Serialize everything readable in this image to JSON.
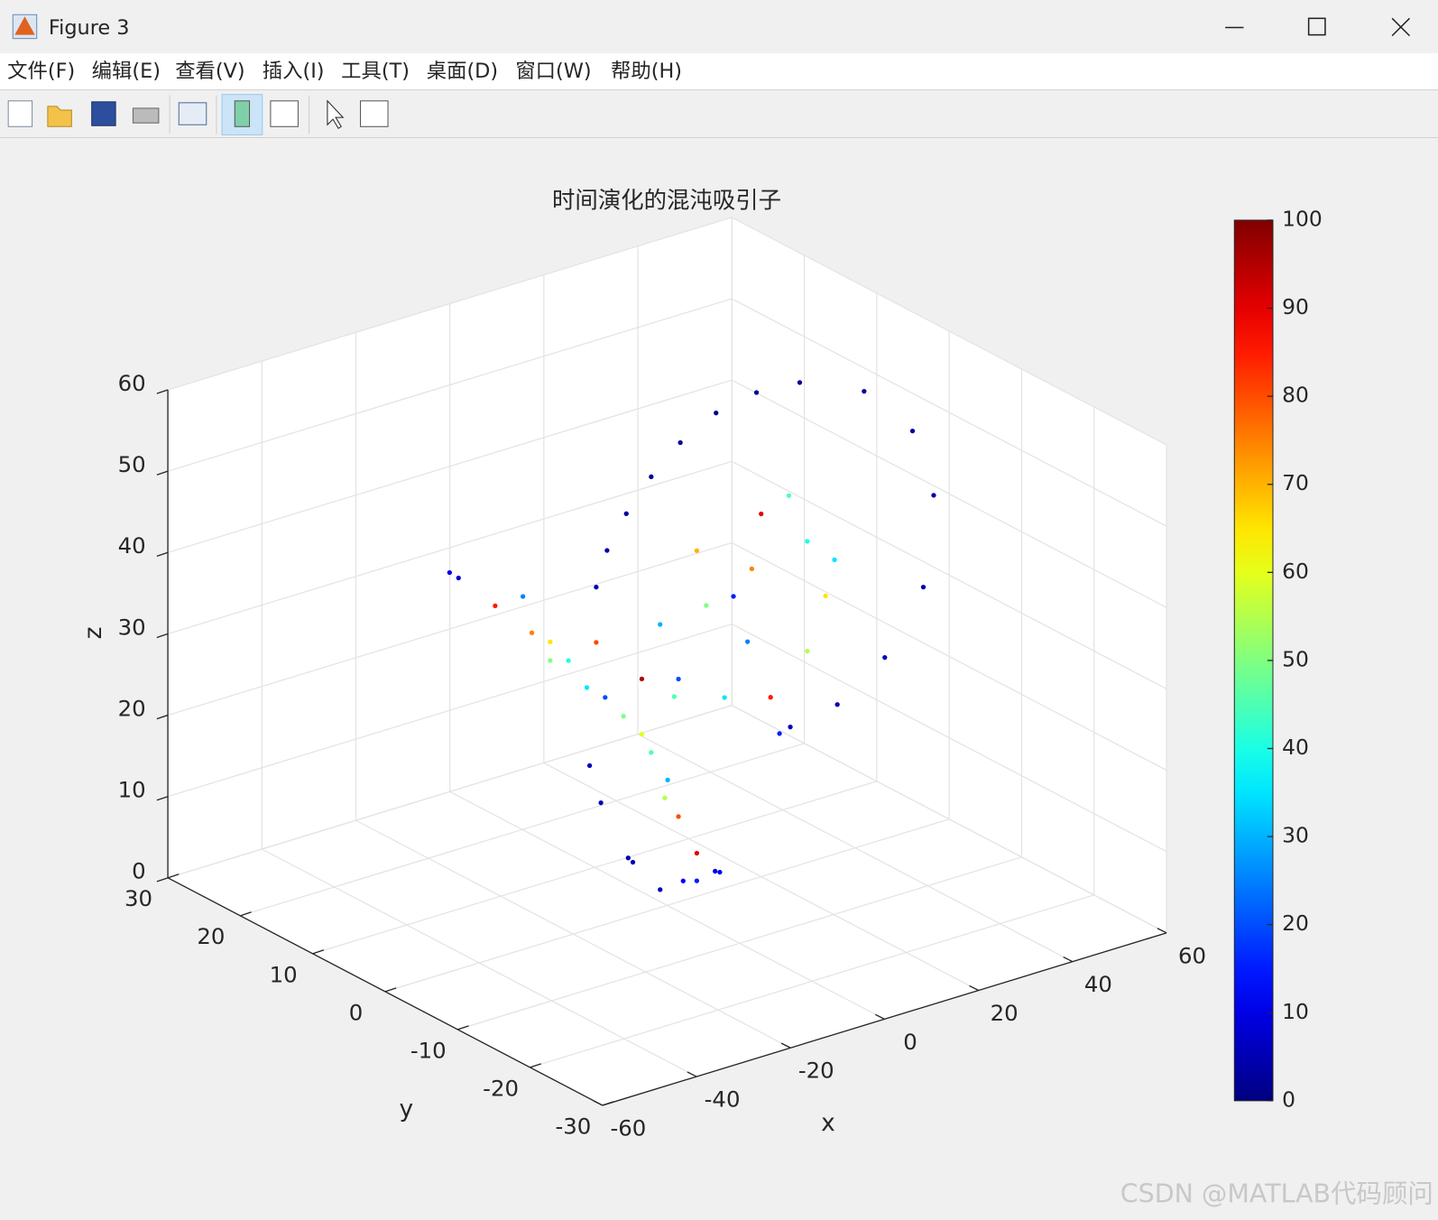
{
  "window": {
    "title": "Figure 3"
  },
  "menu": [
    "文件(F)",
    "编辑(E)",
    "查看(V)",
    "插入(I)",
    "工具(T)",
    "桌面(D)",
    "窗口(W)",
    "帮助(H)"
  ],
  "watermark": "CSDN @MATLAB代码顾问",
  "chart_data": {
    "type": "scatter3",
    "title": "时间演化的混沌吸引子",
    "x_label": "x",
    "y_label": "y",
    "z_label": "z",
    "xlim": [
      -60,
      60
    ],
    "xticks": [
      -60,
      -40,
      -20,
      0,
      20,
      40,
      60
    ],
    "ylim": [
      -30,
      30
    ],
    "yticks": [
      -30,
      -20,
      -10,
      0,
      10,
      20,
      30
    ],
    "zlim": [
      0,
      60
    ],
    "zticks": [
      0,
      10,
      20,
      30,
      40,
      50,
      60
    ],
    "grid": true,
    "colormap": "jet",
    "clim": [
      0,
      100
    ],
    "cticks": [
      0,
      10,
      20,
      30,
      40,
      50,
      60,
      70,
      80,
      90,
      100
    ],
    "x": [
      -46.3,
      -36.6,
      -28.8,
      -21.0,
      -13.2,
      -5.4,
      0.1,
      2.4,
      6.3,
      10.2,
      -1.5,
      -7.3,
      6.3,
      14.1,
      2.4,
      1.5,
      8.3,
      17.1,
      12.2,
      20.0,
      29.8,
      33.7,
      29.8,
      22.0,
      6.3,
      -1.5,
      -5.4,
      25.9,
      35.6,
      18.0,
      23.9,
      -15.1,
      -24.9,
      -9.3,
      19.0,
      28.2,
      41.9,
      52.2,
      56.7,
      54.5,
      46.3,
      36.2,
      26.2,
      10.4,
      2.8,
      -3.4,
      -8.7,
      -12.8,
      -15.1,
      -16.5,
      -14.1,
      -8.3,
      3.4,
      11.2,
      -44.4,
      -30.7,
      -24.9,
      -17.1,
      -3.4,
      -0.5
    ],
    "y": [
      0,
      0,
      0,
      0,
      0,
      0,
      0,
      0,
      0,
      0,
      0,
      0,
      0,
      0,
      0,
      0,
      0,
      0,
      0,
      0,
      0,
      0,
      0,
      0,
      0,
      0,
      0,
      0,
      0,
      0,
      0,
      0,
      0,
      0,
      0,
      0,
      0,
      0,
      0,
      0,
      0,
      0,
      0,
      0,
      0,
      0,
      0,
      0,
      0,
      0,
      0,
      0,
      0,
      0,
      0,
      0,
      0,
      0,
      0,
      0
    ],
    "z": [
      49.1,
      43.3,
      38.6,
      33.8,
      27.9,
      22.0,
      15.4,
      10.5,
      5.3,
      2.4,
      2.2,
      6.6,
      1.9,
      35.5,
      27.4,
      25.4,
      35.4,
      29.4,
      23.4,
      44.6,
      39.5,
      32.1,
      26.0,
      21.7,
      42.5,
      34.8,
      28.8,
      45.8,
      36.2,
      38.2,
      16.9,
      35.0,
      36.8,
      24.9,
      59.7,
      59.3,
      55.8,
      49.1,
      40.4,
      29.5,
      22.3,
      18.3,
      17.3,
      58.7,
      56.4,
      53.3,
      49.7,
      45.9,
      41.8,
      20.1,
      15.1,
      7.3,
      2.4,
      2.1,
      48.1,
      43.4,
      34.5,
      29.8,
      19.4,
      13.3
    ],
    "c": [
      10,
      85,
      75,
      40,
      20,
      60,
      30,
      80,
      90,
      10,
      5,
      5,
      15,
      15,
      20,
      45,
      50,
      25,
      35,
      90,
      40,
      65,
      55,
      85,
      70,
      30,
      95,
      45,
      35,
      75,
      15,
      80,
      65,
      50,
      2,
      2,
      3,
      3,
      4,
      4,
      5,
      5,
      6,
      2,
      2,
      3,
      3,
      4,
      5,
      6,
      6,
      5,
      12,
      12,
      8,
      25,
      50,
      35,
      45,
      55
    ]
  }
}
